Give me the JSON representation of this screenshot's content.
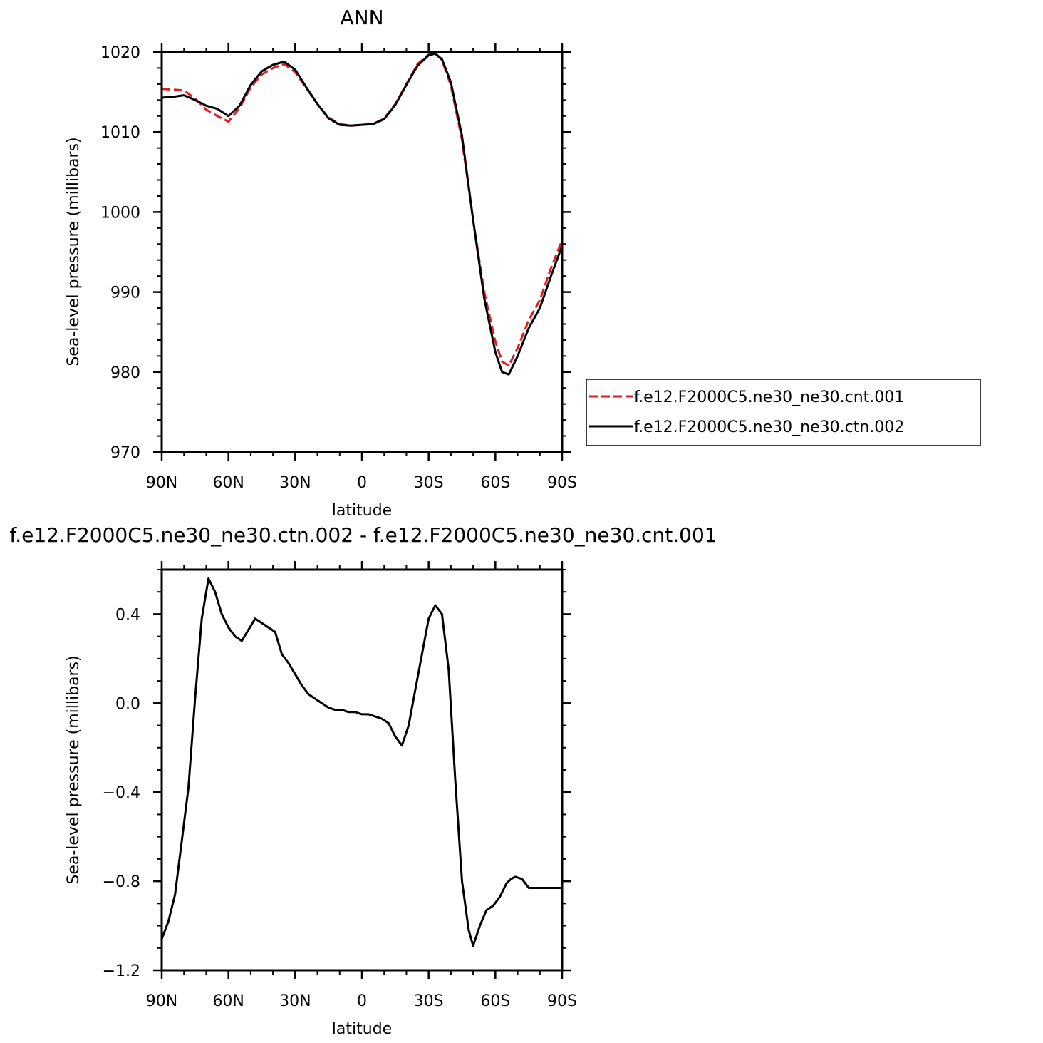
{
  "chart_data": [
    {
      "type": "line",
      "title": "ANN",
      "xlabel": "latitude",
      "ylabel": "Sea-level pressure (millibars)",
      "xlim": [
        90,
        -90
      ],
      "ylim": [
        970,
        1020
      ],
      "xticks": [
        90,
        60,
        30,
        0,
        -30,
        -60,
        -90
      ],
      "xtick_labels": [
        "90N",
        "60N",
        "30N",
        "0",
        "30S",
        "60S",
        "90S"
      ],
      "yticks": [
        970,
        980,
        990,
        1000,
        1010,
        1020
      ],
      "ytick_labels": [
        "970",
        "980",
        "990",
        "1000",
        "1010",
        "1020"
      ],
      "legend_position": "right",
      "series": [
        {
          "name": "f.e12.F2000C5.ne30_ne30.cnt.001",
          "color": "#e41a1c",
          "dash": "dashed",
          "x": [
            90,
            85,
            80,
            75,
            70,
            65,
            60,
            55,
            50,
            45,
            40,
            35,
            30,
            25,
            20,
            15,
            10,
            5,
            0,
            -5,
            -10,
            -15,
            -20,
            -25,
            -30,
            -33,
            -36,
            -40,
            -45,
            -50,
            -55,
            -60,
            -63,
            -66,
            -70,
            -75,
            -80,
            -85,
            -90
          ],
          "y": [
            1015.4,
            1015.3,
            1015.2,
            1014.2,
            1012.8,
            1012.0,
            1011.3,
            1013.0,
            1015.6,
            1017.2,
            1018.0,
            1018.5,
            1017.5,
            1015.5,
            1013.5,
            1011.8,
            1011.0,
            1010.8,
            1010.9,
            1011.0,
            1011.7,
            1013.5,
            1016.0,
            1018.5,
            1019.7,
            1019.8,
            1019.0,
            1015.8,
            1009.0,
            999.0,
            990.0,
            983.8,
            981.3,
            980.8,
            983.0,
            986.5,
            989.0,
            993.0,
            996.5
          ]
        },
        {
          "name": "f.e12.F2000C5.ne30_ne30.ctn.002",
          "color": "#000000",
          "dash": "solid",
          "x": [
            90,
            85,
            80,
            75,
            70,
            65,
            60,
            55,
            50,
            45,
            40,
            35,
            30,
            25,
            20,
            15,
            10,
            5,
            0,
            -5,
            -10,
            -15,
            -20,
            -25,
            -30,
            -33,
            -36,
            -40,
            -45,
            -50,
            -55,
            -60,
            -63,
            -66,
            -70,
            -75,
            -80,
            -85,
            -90
          ],
          "y": [
            1014.3,
            1014.4,
            1014.6,
            1014.0,
            1013.3,
            1012.9,
            1012.0,
            1013.3,
            1015.9,
            1017.6,
            1018.4,
            1018.8,
            1017.8,
            1015.6,
            1013.5,
            1011.7,
            1010.9,
            1010.8,
            1010.9,
            1011.0,
            1011.6,
            1013.4,
            1015.9,
            1018.3,
            1019.6,
            1019.8,
            1019.1,
            1016.2,
            1009.5,
            999.0,
            989.2,
            982.5,
            980.0,
            979.7,
            982.0,
            985.5,
            988.0,
            992.0,
            995.8
          ]
        }
      ]
    },
    {
      "type": "line",
      "title": "f.e12.F2000C5.ne30_ne30.ctn.002 - f.e12.F2000C5.ne30_ne30.cnt.001",
      "xlabel": "latitude",
      "ylabel": "Sea-level pressure (millibars)",
      "xlim": [
        90,
        -90
      ],
      "ylim": [
        -1.2,
        0.6
      ],
      "xticks": [
        90,
        60,
        30,
        0,
        -30,
        -60,
        -90
      ],
      "xtick_labels": [
        "90N",
        "60N",
        "30N",
        "0",
        "30S",
        "60S",
        "90S"
      ],
      "yticks": [
        -1.2,
        -0.8,
        -0.4,
        0.0,
        0.4
      ],
      "ytick_labels": [
        "−1.2",
        "−0.8",
        "−0.4",
        "0.0",
        "0.4"
      ],
      "series": [
        {
          "color": "#000000",
          "dash": "solid",
          "x": [
            90,
            87,
            84,
            81,
            78,
            75,
            72,
            69,
            66,
            63,
            60,
            57,
            54,
            51,
            48,
            45,
            42,
            39,
            36,
            33,
            30,
            27,
            24,
            21,
            18,
            15,
            12,
            9,
            6,
            3,
            0,
            -3,
            -6,
            -9,
            -12,
            -15,
            -18,
            -21,
            -24,
            -27,
            -30,
            -33,
            -36,
            -39,
            -42,
            -45,
            -48,
            -50,
            -53,
            -56,
            -59,
            -62,
            -65,
            -67,
            -69,
            -72,
            -75,
            -78,
            -81,
            -84,
            -87,
            -90
          ],
          "y": [
            -1.06,
            -0.98,
            -0.86,
            -0.62,
            -0.38,
            0.02,
            0.38,
            0.56,
            0.5,
            0.4,
            0.34,
            0.3,
            0.28,
            0.33,
            0.38,
            0.36,
            0.34,
            0.32,
            0.22,
            0.18,
            0.13,
            0.08,
            0.04,
            0.02,
            0.0,
            -0.02,
            -0.03,
            -0.03,
            -0.04,
            -0.04,
            -0.05,
            -0.05,
            -0.06,
            -0.07,
            -0.09,
            -0.15,
            -0.19,
            -0.1,
            0.06,
            0.22,
            0.38,
            0.44,
            0.4,
            0.15,
            -0.35,
            -0.8,
            -1.02,
            -1.09,
            -1.0,
            -0.93,
            -0.91,
            -0.87,
            -0.81,
            -0.79,
            -0.78,
            -0.79,
            -0.83,
            -0.83,
            -0.83,
            -0.83,
            -0.83,
            -0.83
          ]
        }
      ]
    }
  ]
}
